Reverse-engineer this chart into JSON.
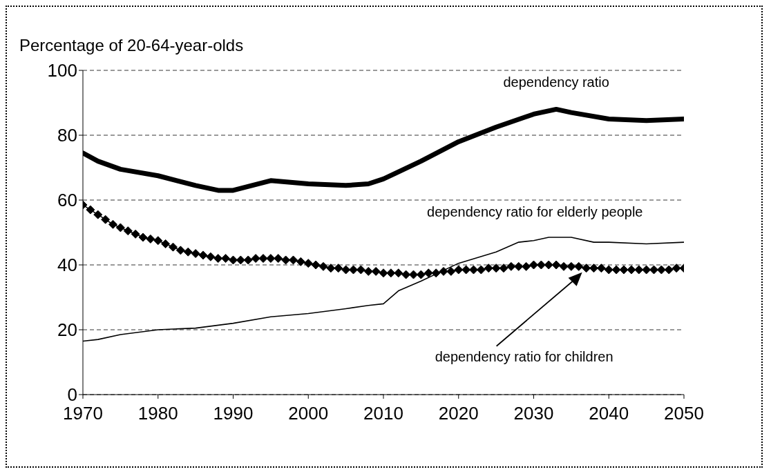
{
  "chart_data": {
    "type": "line",
    "ylabel": "Percentage of 20-64-year-olds",
    "xlim": [
      1970,
      2050
    ],
    "xticks": [
      1970,
      1980,
      1990,
      2000,
      2010,
      2020,
      2030,
      2040,
      2050
    ],
    "ylim": [
      0,
      100
    ],
    "yticks": [
      0,
      20,
      40,
      60,
      80,
      100
    ],
    "grid": "y",
    "series": [
      {
        "name": "dependency ratio",
        "color": "#000000",
        "marker": "none",
        "x": [
          1970,
          1972,
          1975,
          1980,
          1985,
          1988,
          1990,
          1995,
          2000,
          2005,
          2008,
          2010,
          2015,
          2020,
          2025,
          2030,
          2033,
          2035,
          2040,
          2045,
          2050
        ],
        "values": [
          74.5,
          72,
          69.5,
          67.5,
          64.5,
          63,
          63,
          66,
          65,
          64.5,
          65,
          66.5,
          72,
          78,
          82.5,
          86.5,
          88,
          87,
          85,
          84.5,
          85
        ]
      },
      {
        "name": "dependency ratio for elderly people",
        "color": "#000000",
        "marker": "none",
        "x": [
          1970,
          1972,
          1975,
          1980,
          1985,
          1990,
          1995,
          2000,
          2005,
          2008,
          2010,
          2012,
          2015,
          2020,
          2025,
          2028,
          2030,
          2032,
          2035,
          2038,
          2040,
          2045,
          2050
        ],
        "values": [
          16.5,
          17,
          18.5,
          20,
          20.5,
          22,
          24,
          25,
          26.5,
          27.5,
          28,
          32,
          35,
          40.5,
          44,
          47,
          47.5,
          48.5,
          48.5,
          47,
          47,
          46.5,
          47
        ]
      },
      {
        "name": "dependency ratio for children",
        "color": "#000000",
        "marker": "diamond",
        "x": [
          1970,
          1971,
          1972,
          1973,
          1974,
          1975,
          1976,
          1977,
          1978,
          1979,
          1980,
          1981,
          1982,
          1983,
          1984,
          1985,
          1986,
          1987,
          1988,
          1989,
          1990,
          1991,
          1992,
          1993,
          1994,
          1995,
          1996,
          1997,
          1998,
          1999,
          2000,
          2001,
          2002,
          2003,
          2004,
          2005,
          2006,
          2007,
          2008,
          2009,
          2010,
          2011,
          2012,
          2013,
          2014,
          2015,
          2016,
          2017,
          2018,
          2019,
          2020,
          2021,
          2022,
          2023,
          2024,
          2025,
          2026,
          2027,
          2028,
          2029,
          2030,
          2031,
          2032,
          2033,
          2034,
          2035,
          2036,
          2037,
          2038,
          2039,
          2040,
          2041,
          2042,
          2043,
          2044,
          2045,
          2046,
          2047,
          2048,
          2049,
          2050
        ],
        "values": [
          58.5,
          57,
          55.5,
          54,
          52.5,
          51.5,
          50.5,
          49.5,
          48.5,
          48,
          47.5,
          46.5,
          45.5,
          44.5,
          44,
          43.5,
          43,
          42.5,
          42,
          42,
          41.5,
          41.5,
          41.5,
          42,
          42,
          42,
          42,
          41.5,
          41.5,
          41,
          40.5,
          40,
          39.5,
          39,
          39,
          38.5,
          38.5,
          38.5,
          38,
          38,
          37.5,
          37.5,
          37.5,
          37,
          37,
          37,
          37.5,
          37.5,
          38,
          38,
          38.5,
          38.5,
          38.5,
          38.5,
          39,
          39,
          39,
          39.5,
          39.5,
          39.5,
          40,
          40,
          40,
          40,
          39.5,
          39.5,
          39.5,
          39,
          39,
          39,
          38.5,
          38.5,
          38.5,
          38.5,
          38.5,
          38.5,
          38.5,
          38.5,
          38.5,
          39,
          39
        ]
      }
    ]
  }
}
